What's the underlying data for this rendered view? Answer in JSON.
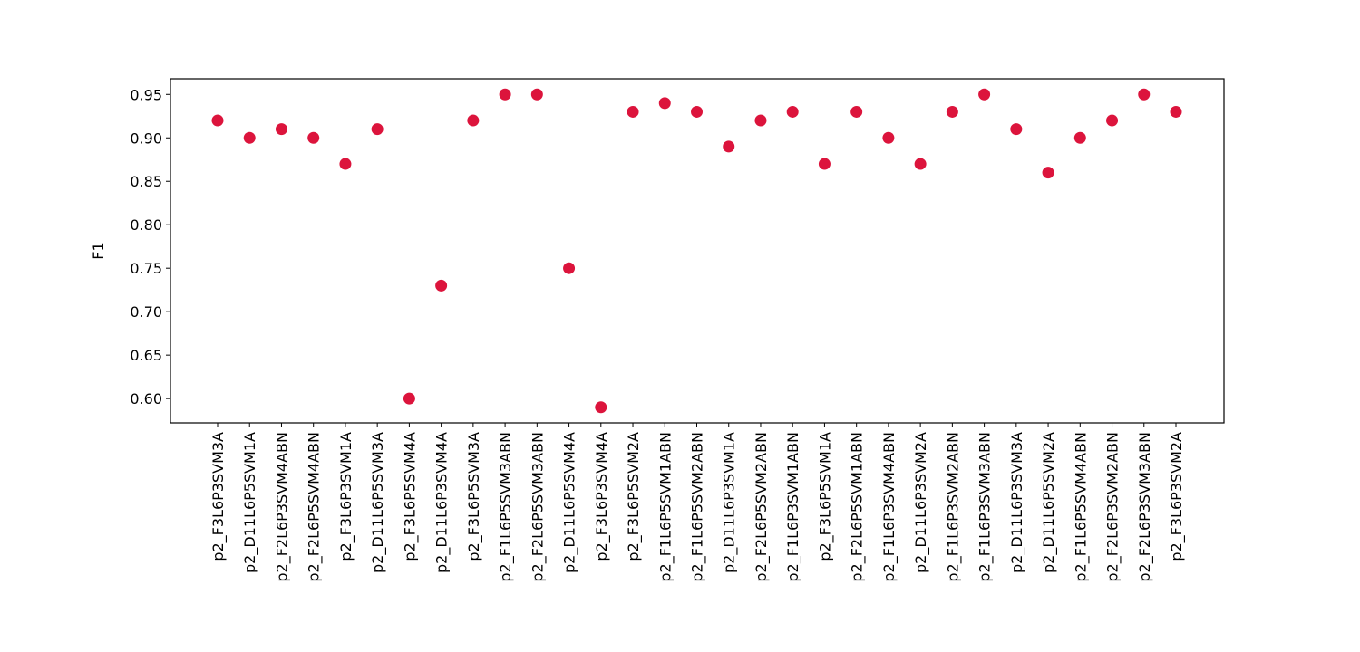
{
  "chart_data": {
    "type": "scatter",
    "title": "",
    "xlabel": "",
    "ylabel": "F1",
    "ylim": [
      0.572,
      0.968
    ],
    "yticks": [
      "0.60",
      "0.65",
      "0.70",
      "0.75",
      "0.80",
      "0.85",
      "0.90",
      "0.95"
    ],
    "grid": false,
    "legend": "none",
    "marker_color": "#dc143c",
    "categories": [
      "p2_F3L6P3SVM3A",
      "p2_D11L6P5SVM1A",
      "p2_F2L6P3SVM4ABN",
      "p2_F2L6P5SVM4ABN",
      "p2_F3L6P3SVM1A",
      "p2_D11L6P5SVM3A",
      "p2_F3L6P5SVM4A",
      "p2_D11L6P3SVM4A",
      "p2_F3L6P5SVM3A",
      "p2_F1L6P5SVM3ABN",
      "p2_F2L6P5SVM3ABN",
      "p2_D11L6P5SVM4A",
      "p2_F3L6P3SVM4A",
      "p2_F3L6P5SVM2A",
      "p2_F1L6P5SVM1ABN",
      "p2_F1L6P5SVM2ABN",
      "p2_D11L6P3SVM1A",
      "p2_F2L6P5SVM2ABN",
      "p2_F1L6P3SVM1ABN",
      "p2_F3L6P5SVM1A",
      "p2_F2L6P5SVM1ABN",
      "p2_F1L6P3SVM4ABN",
      "p2_D11L6P3SVM2A",
      "p2_F1L6P3SVM2ABN",
      "p2_F1L6P3SVM3ABN",
      "p2_D11L6P3SVM3A",
      "p2_D11L6P5SVM2A",
      "p2_F1L6P5SVM4ABN",
      "p2_F2L6P3SVM2ABN",
      "p2_F2L6P3SVM3ABN",
      "p2_F3L6P3SVM2A"
    ],
    "values": [
      0.92,
      0.9,
      0.91,
      0.9,
      0.87,
      0.91,
      0.6,
      0.73,
      0.92,
      0.95,
      0.95,
      0.75,
      0.59,
      0.93,
      0.94,
      0.93,
      0.89,
      0.92,
      0.93,
      0.87,
      0.93,
      0.9,
      0.87,
      0.93,
      0.95,
      0.91,
      0.86,
      0.9,
      0.92,
      0.95,
      0.93
    ]
  }
}
